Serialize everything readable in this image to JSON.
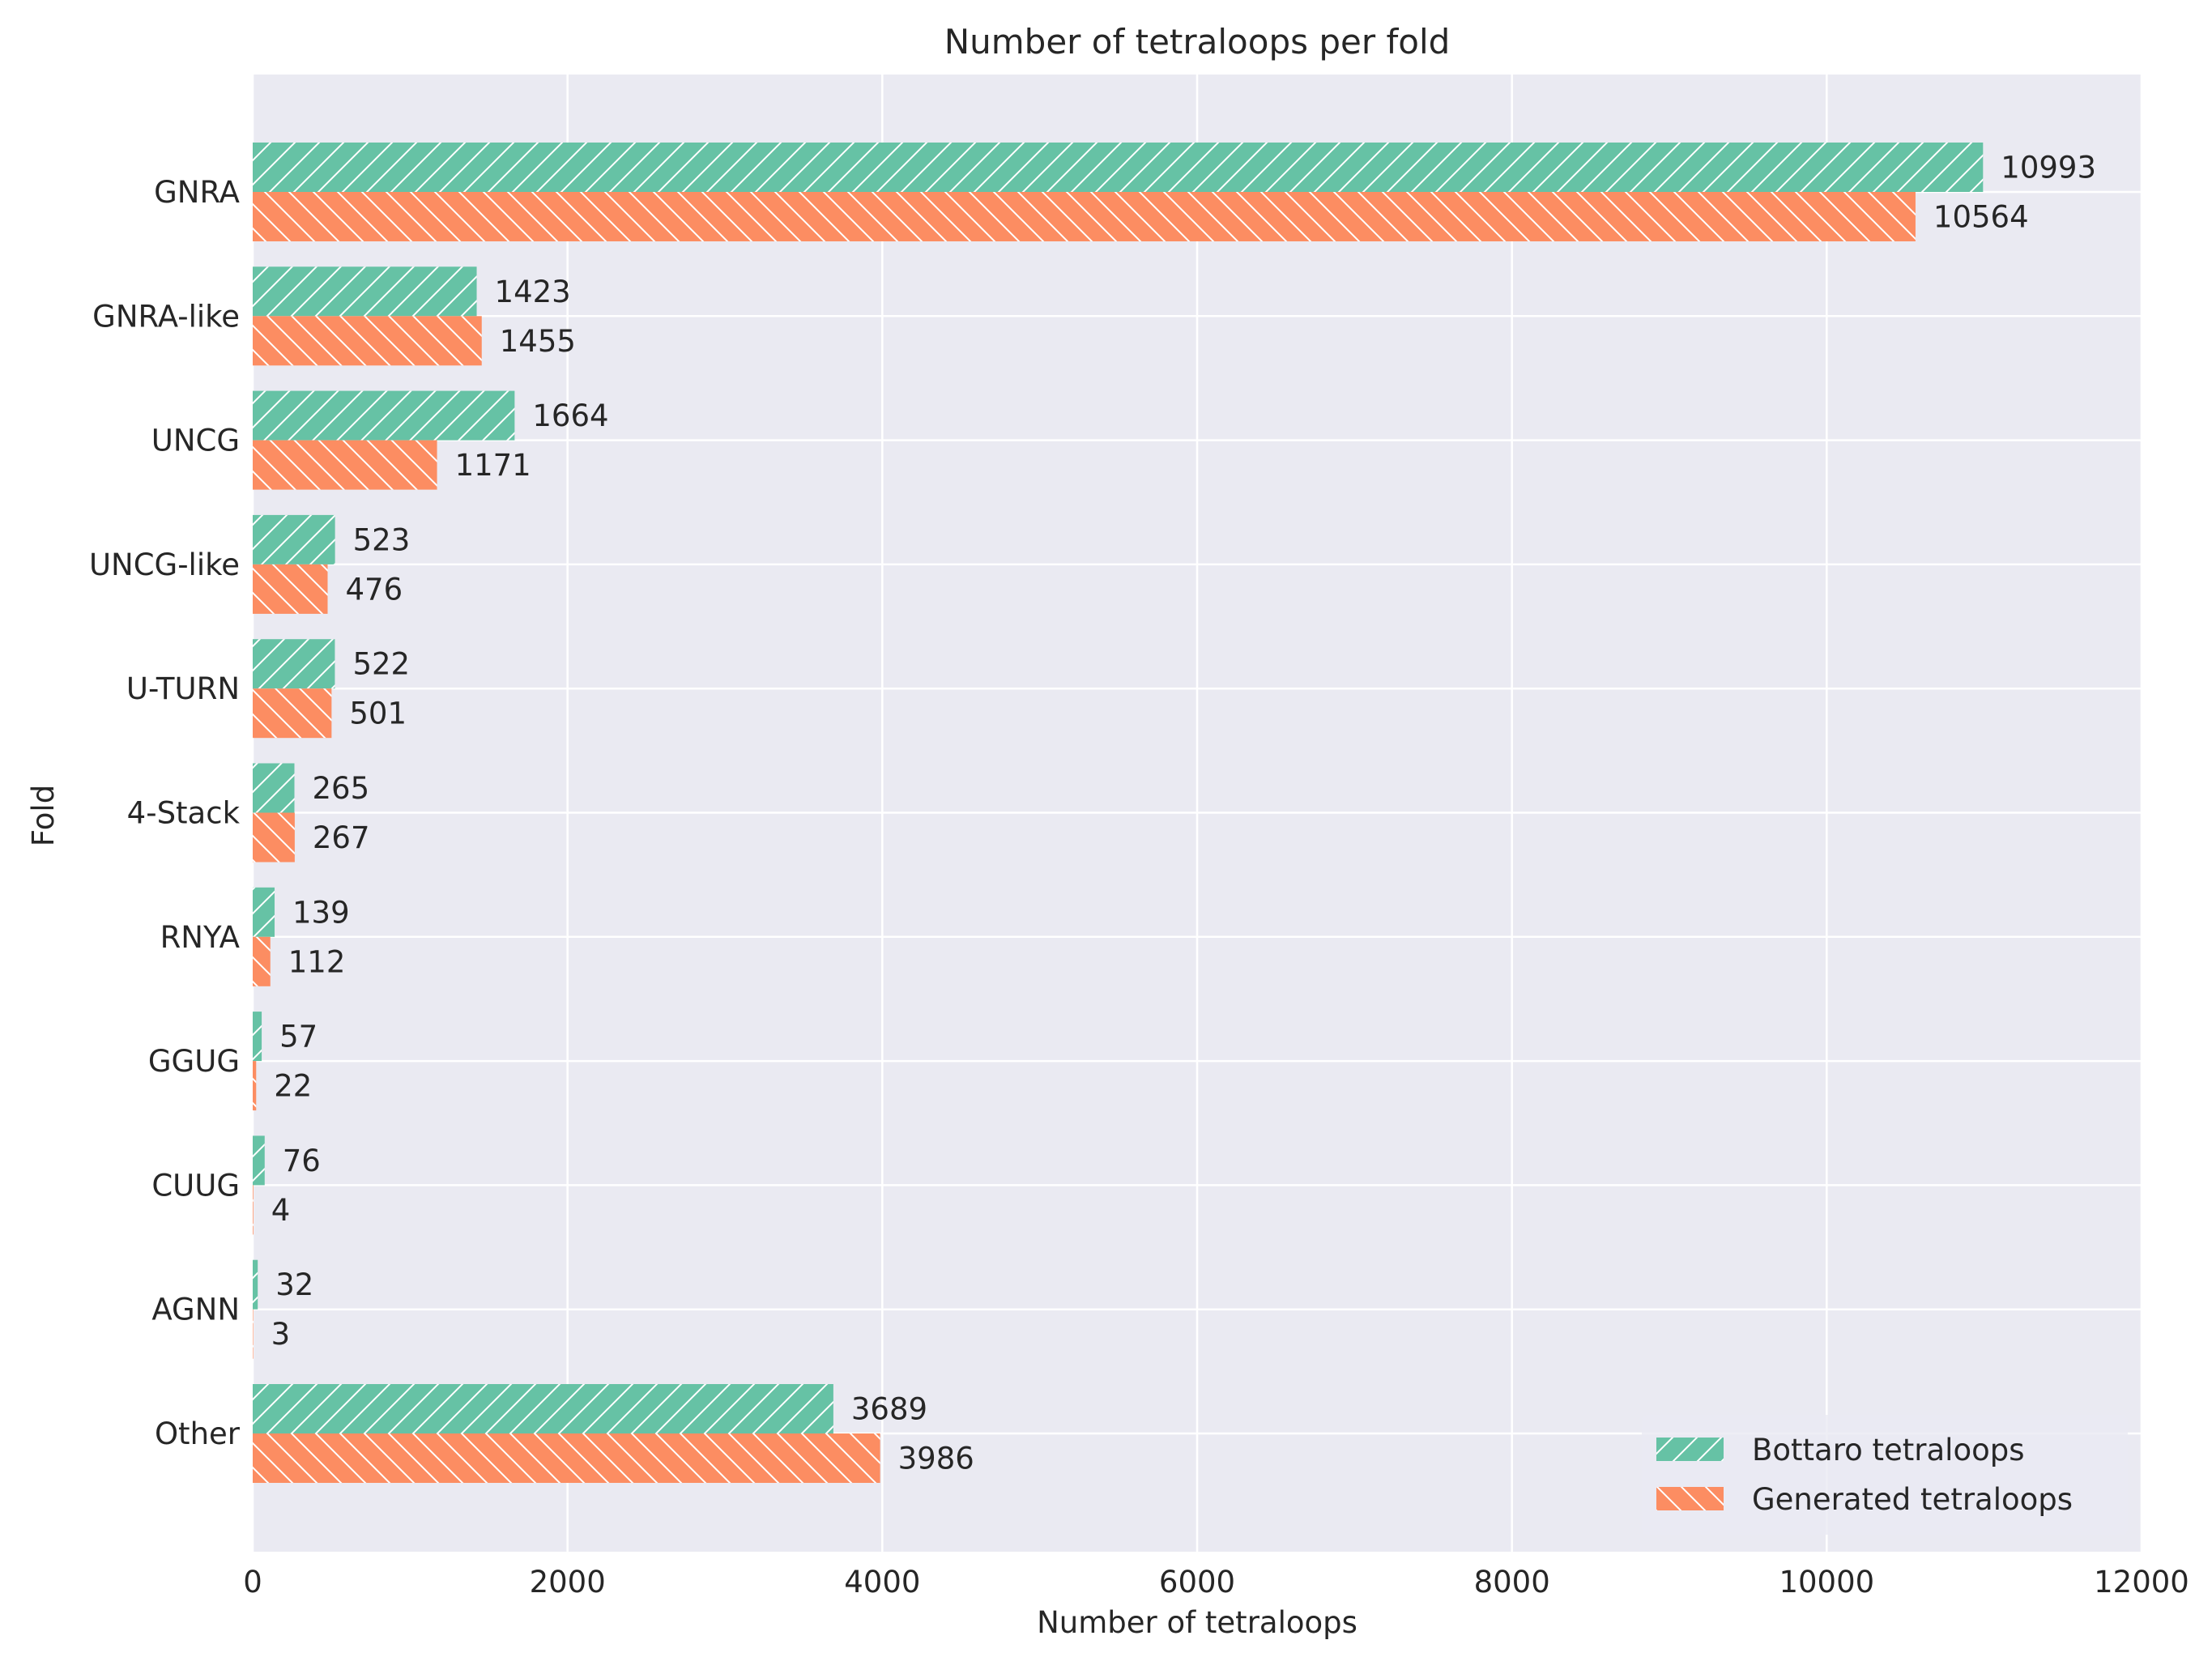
{
  "chart_data": {
    "type": "bar",
    "orientation": "horizontal",
    "title": "Number of tetraloops per fold",
    "xlabel": "Number of tetraloops",
    "ylabel": "Fold",
    "categories": [
      "GNRA",
      "GNRA-like",
      "UNCG",
      "UNCG-like",
      "U-TURN",
      "4-Stack",
      "RNYA",
      "GGUG",
      "CUUG",
      "AGNN",
      "Other"
    ],
    "series": [
      {
        "name": "Bottaro tetraloops",
        "color": "#66c2a5",
        "hatch": "forward",
        "values": [
          10993,
          1423,
          1664,
          523,
          522,
          265,
          139,
          57,
          76,
          32,
          3689
        ]
      },
      {
        "name": "Generated tetraloops",
        "color": "#fc8d62",
        "hatch": "backward",
        "values": [
          10564,
          1455,
          1171,
          476,
          501,
          267,
          112,
          22,
          4,
          3,
          3986
        ]
      }
    ],
    "xlim": [
      0,
      12000
    ],
    "xticks": [
      0,
      2000,
      4000,
      6000,
      8000,
      10000,
      12000
    ],
    "grid": true,
    "legend_position": "bottom-right",
    "background": "#eaeaf2"
  }
}
